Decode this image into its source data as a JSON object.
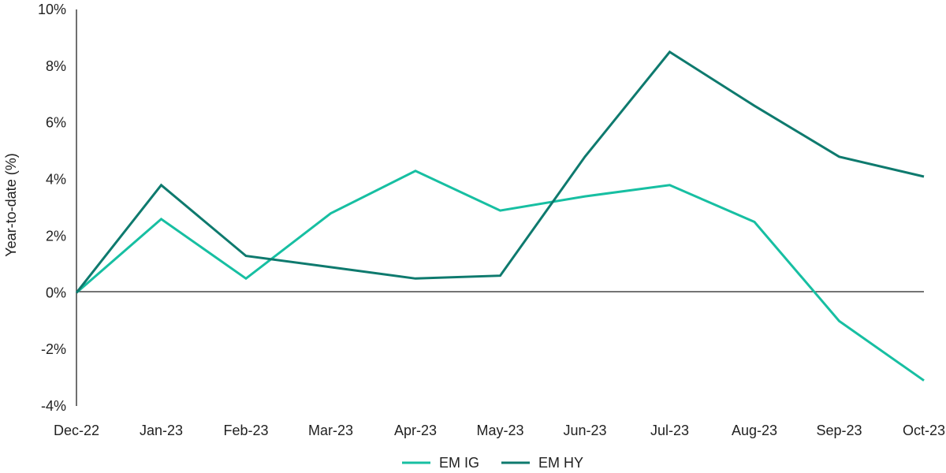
{
  "chart_data": {
    "type": "line",
    "categories": [
      "Dec-22",
      "Jan-23",
      "Feb-23",
      "Mar-23",
      "Apr-23",
      "May-23",
      "Jun-23",
      "Jul-23",
      "Aug-23",
      "Sep-23",
      "Oct-23"
    ],
    "series": [
      {
        "name": "EM IG",
        "color": "#17bfa2",
        "values": [
          0.0,
          2.6,
          0.5,
          2.8,
          4.3,
          2.9,
          3.4,
          3.8,
          2.5,
          -1.0,
          -3.1
        ]
      },
      {
        "name": "EM HY",
        "color": "#0e7a6e",
        "values": [
          0.0,
          3.8,
          1.3,
          0.9,
          0.5,
          0.6,
          4.8,
          8.5,
          6.6,
          4.8,
          4.1
        ]
      }
    ],
    "ylabel": "Year-to-date (%)",
    "ylim": [
      -4,
      10
    ],
    "yticks": [
      10,
      8,
      6,
      4,
      2,
      0,
      -2,
      -4
    ],
    "ytick_labels": [
      "10%",
      "8%",
      "6%",
      "4%",
      "2%",
      "0%",
      "-2%",
      "-4%"
    ],
    "grid": false,
    "legend_position": "bottom-center"
  }
}
